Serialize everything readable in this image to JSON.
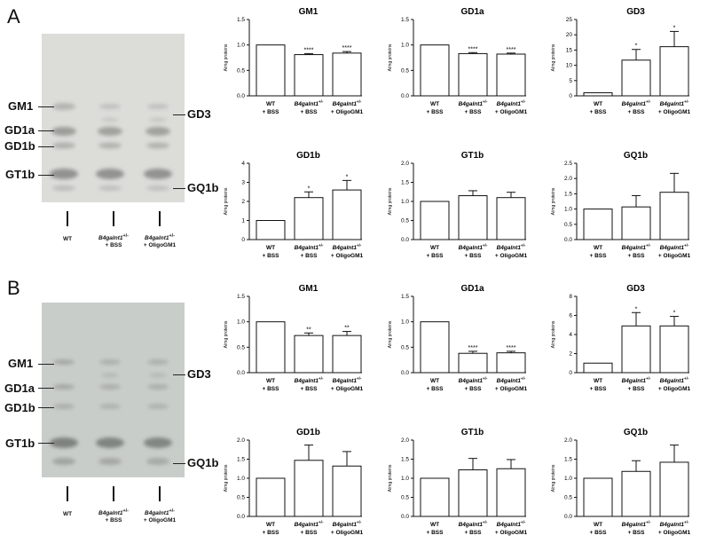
{
  "panels": [
    {
      "letter": "A",
      "left_labels": [
        "GM1",
        "GD1a",
        "GD1b",
        "GT1b"
      ],
      "right_labels": [
        "GD3",
        "GQ1b"
      ],
      "lanes": [
        {
          "line1": "WT",
          "line2": ""
        },
        {
          "gene": "B4galnt1",
          "sup": "+/-",
          "line2": "+ BSS"
        },
        {
          "gene": "B4galnt1",
          "sup": "+/-",
          "line2": "+ OligoGM1"
        }
      ]
    },
    {
      "letter": "B",
      "left_labels": [
        "GM1",
        "GD1a",
        "GD1b",
        "GT1b"
      ],
      "right_labels": [
        "GD3",
        "GQ1b"
      ],
      "lanes": [
        {
          "line1": "WT",
          "line2": ""
        },
        {
          "gene": "B4galnt1",
          "sup": "+/-",
          "line2": "+ BSS"
        },
        {
          "gene": "B4galnt1",
          "sup": "+/-",
          "line2": "+ OligoGM1"
        }
      ]
    }
  ],
  "chart_data": [
    {
      "type": "bar",
      "panel": "A",
      "title": "GM1",
      "ylabel": "A/mg proteins",
      "categories": [
        "WT + BSS",
        "B4galnt1+/- + BSS",
        "B4galnt1+/- + OligoGM1"
      ],
      "values": [
        1.0,
        0.81,
        0.84
      ],
      "errors": [
        0,
        0.02,
        0.03
      ],
      "significance": [
        "",
        "****",
        "****"
      ],
      "ylim": [
        0,
        1.5
      ],
      "yticks": [
        "0.0",
        "0.5",
        "1.0",
        "1.5"
      ]
    },
    {
      "type": "bar",
      "panel": "A",
      "title": "GD1a",
      "ylabel": "A/mg proteins",
      "categories": [
        "WT + BSS",
        "B4galnt1+/- + BSS",
        "B4galnt1+/- + OligoGM1"
      ],
      "values": [
        1.0,
        0.83,
        0.82
      ],
      "errors": [
        0,
        0.02,
        0.02
      ],
      "significance": [
        "",
        "****",
        "****"
      ],
      "ylim": [
        0,
        1.5
      ],
      "yticks": [
        "0.0",
        "0.5",
        "1.0",
        "1.5"
      ]
    },
    {
      "type": "bar",
      "panel": "A",
      "title": "GD3",
      "ylabel": "A/mg proteins",
      "categories": [
        "WT + BSS",
        "B4galnt1+/- + BSS",
        "B4galnt1+/- + OligoGM1"
      ],
      "values": [
        1.0,
        11.7,
        16.1
      ],
      "errors": [
        0,
        3.5,
        5.0
      ],
      "significance": [
        "",
        "*",
        "*"
      ],
      "ylim": [
        0,
        25
      ],
      "yticks": [
        "0",
        "5",
        "10",
        "15",
        "20",
        "25"
      ]
    },
    {
      "type": "bar",
      "panel": "A",
      "title": "GD1b",
      "ylabel": "A/mg proteins",
      "categories": [
        "WT + BSS",
        "B4galnt1+/- + BSS",
        "B4galnt1+/- + OligoGM1"
      ],
      "values": [
        1.0,
        2.2,
        2.6
      ],
      "errors": [
        0,
        0.3,
        0.5
      ],
      "significance": [
        "",
        "*",
        "*"
      ],
      "ylim": [
        0,
        4
      ],
      "yticks": [
        "0",
        "1",
        "2",
        "3",
        "4"
      ]
    },
    {
      "type": "bar",
      "panel": "A",
      "title": "GT1b",
      "ylabel": "A/mg proteins",
      "categories": [
        "WT + BSS",
        "B4galnt1+/- + BSS",
        "B4galnt1+/- + OligoGM1"
      ],
      "values": [
        1.0,
        1.15,
        1.1
      ],
      "errors": [
        0,
        0.13,
        0.14
      ],
      "significance": [
        "",
        "",
        ""
      ],
      "ylim": [
        0,
        2.0
      ],
      "yticks": [
        "0.0",
        "0.5",
        "1.0",
        "1.5",
        "2.0"
      ]
    },
    {
      "type": "bar",
      "panel": "A",
      "title": "GQ1b",
      "ylabel": "A/mg proteins",
      "categories": [
        "WT + BSS",
        "B4galnt1+/- + BSS",
        "B4galnt1+/- + OligoGM1"
      ],
      "values": [
        1.0,
        1.07,
        1.55
      ],
      "errors": [
        0,
        0.37,
        0.62
      ],
      "significance": [
        "",
        "",
        ""
      ],
      "ylim": [
        0,
        2.5
      ],
      "yticks": [
        "0.0",
        "0.5",
        "1.0",
        "1.5",
        "2.0",
        "2.5"
      ]
    },
    {
      "type": "bar",
      "panel": "B",
      "title": "GM1",
      "ylabel": "A/mg proteins",
      "categories": [
        "WT + BSS",
        "B4galnt1+/- + BSS",
        "B4galnt1+/- + OligoGM1"
      ],
      "values": [
        1.0,
        0.73,
        0.73
      ],
      "errors": [
        0,
        0.05,
        0.08
      ],
      "significance": [
        "",
        "**",
        "**"
      ],
      "ylim": [
        0,
        1.5
      ],
      "yticks": [
        "0.0",
        "0.5",
        "1.0",
        "1.5"
      ]
    },
    {
      "type": "bar",
      "panel": "B",
      "title": "GD1a",
      "ylabel": "A/mg proteins",
      "categories": [
        "WT + BSS",
        "B4galnt1+/- + BSS",
        "B4galnt1+/- + OligoGM1"
      ],
      "values": [
        1.0,
        0.38,
        0.39
      ],
      "errors": [
        0,
        0.04,
        0.03
      ],
      "significance": [
        "",
        "****",
        "****"
      ],
      "ylim": [
        0,
        1.5
      ],
      "yticks": [
        "0.0",
        "0.5",
        "1.0",
        "1.5"
      ]
    },
    {
      "type": "bar",
      "panel": "B",
      "title": "GD3",
      "ylabel": "A/mg proteins",
      "categories": [
        "WT + BSS",
        "B4galnt1+/- + BSS",
        "B4galnt1+/- + OligoGM1"
      ],
      "values": [
        1.0,
        4.9,
        4.9
      ],
      "errors": [
        0,
        1.4,
        1.0
      ],
      "significance": [
        "",
        "*",
        "*"
      ],
      "ylim": [
        0,
        8
      ],
      "yticks": [
        "0",
        "2",
        "4",
        "6",
        "8"
      ]
    },
    {
      "type": "bar",
      "panel": "B",
      "title": "GD1b",
      "ylabel": "A/mg proteins",
      "categories": [
        "WT + BSS",
        "B4galnt1+/- + BSS",
        "B4galnt1+/- + OligoGM1"
      ],
      "values": [
        1.0,
        1.47,
        1.32
      ],
      "errors": [
        0,
        0.4,
        0.38
      ],
      "significance": [
        "",
        "",
        ""
      ],
      "ylim": [
        0,
        2.0
      ],
      "yticks": [
        "0.0",
        "0.5",
        "1.0",
        "1.5",
        "2.0"
      ]
    },
    {
      "type": "bar",
      "panel": "B",
      "title": "GT1b",
      "ylabel": "A/mg proteins",
      "categories": [
        "WT + BSS",
        "B4galnt1+/- + BSS",
        "B4galnt1+/- + OligoGM1"
      ],
      "values": [
        1.0,
        1.22,
        1.25
      ],
      "errors": [
        0,
        0.3,
        0.24
      ],
      "significance": [
        "",
        "",
        ""
      ],
      "ylim": [
        0,
        2.0
      ],
      "yticks": [
        "0.0",
        "0.5",
        "1.0",
        "1.5",
        "2.0"
      ]
    },
    {
      "type": "bar",
      "panel": "B",
      "title": "GQ1b",
      "ylabel": "A/mg proteins",
      "categories": [
        "WT + BSS",
        "B4galnt1+/- + BSS",
        "B4galnt1+/- + OligoGM1"
      ],
      "values": [
        1.0,
        1.18,
        1.42
      ],
      "errors": [
        0,
        0.28,
        0.45
      ],
      "significance": [
        "",
        "",
        ""
      ],
      "ylim": [
        0,
        2.0
      ],
      "yticks": [
        "0.0",
        "0.5",
        "1.0",
        "1.5",
        "2.0"
      ]
    }
  ]
}
